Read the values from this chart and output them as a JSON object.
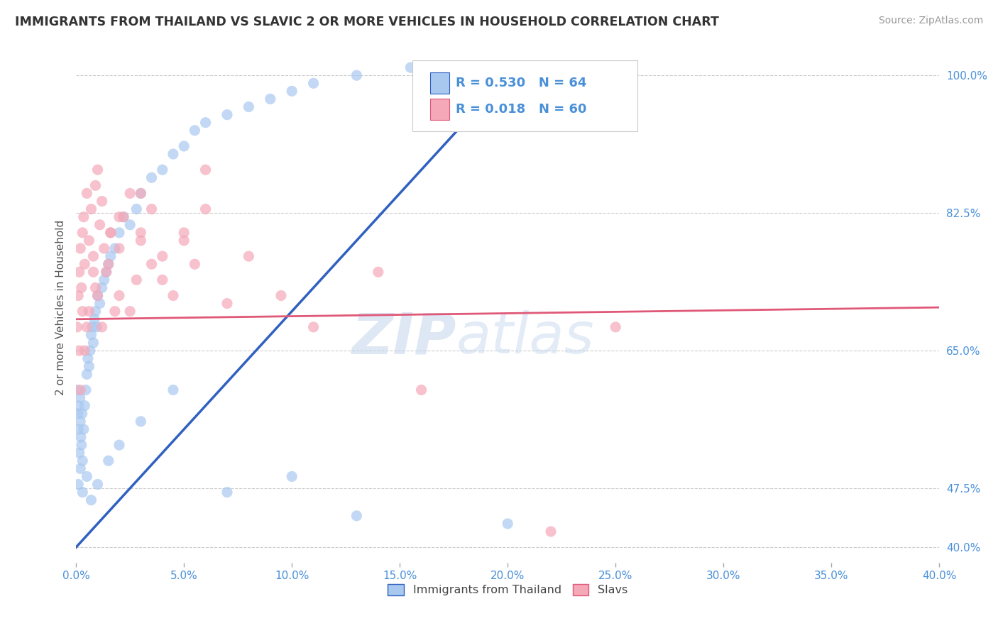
{
  "title": "IMMIGRANTS FROM THAILAND VS SLAVIC 2 OR MORE VEHICLES IN HOUSEHOLD CORRELATION CHART",
  "source": "Source: ZipAtlas.com",
  "xmin": 0.0,
  "xmax": 40.0,
  "ymin": 38.0,
  "ymax": 103.0,
  "ytick_vals": [
    40.0,
    47.5,
    65.0,
    82.5,
    100.0
  ],
  "xtick_vals": [
    0.0,
    5.0,
    10.0,
    15.0,
    20.0,
    25.0,
    30.0,
    35.0,
    40.0
  ],
  "R_thailand": 0.53,
  "N_thailand": 64,
  "R_slavs": 0.018,
  "N_slavs": 60,
  "color_thailand": "#a8c8f0",
  "color_slavs": "#f4a8b8",
  "line_color_thailand": "#3060c0",
  "line_color_slavs": "#e05878",
  "legend_text_color": "#4a90d9",
  "watermark_zip": "ZIP",
  "watermark_atlas": "atlas",
  "thailand_x": [
    0.05,
    0.08,
    0.1,
    0.12,
    0.15,
    0.18,
    0.2,
    0.22,
    0.25,
    0.28,
    0.3,
    0.35,
    0.4,
    0.45,
    0.5,
    0.55,
    0.6,
    0.65,
    0.7,
    0.75,
    0.8,
    0.85,
    0.9,
    0.95,
    1.0,
    1.1,
    1.2,
    1.3,
    1.4,
    1.5,
    1.6,
    1.8,
    2.0,
    2.2,
    2.5,
    2.8,
    3.0,
    3.5,
    4.0,
    4.5,
    5.0,
    5.5,
    6.0,
    7.0,
    8.0,
    9.0,
    10.0,
    11.0,
    13.0,
    15.5,
    0.1,
    0.2,
    0.3,
    0.5,
    0.7,
    1.0,
    1.5,
    2.0,
    3.0,
    4.5,
    7.0,
    10.0,
    13.0,
    20.0
  ],
  "thailand_y": [
    60,
    57,
    55,
    58,
    52,
    59,
    56,
    54,
    53,
    57,
    51,
    55,
    58,
    60,
    62,
    64,
    63,
    65,
    67,
    68,
    66,
    69,
    70,
    68,
    72,
    71,
    73,
    74,
    75,
    76,
    77,
    78,
    80,
    82,
    81,
    83,
    85,
    87,
    88,
    90,
    91,
    93,
    94,
    95,
    96,
    97,
    98,
    99,
    100,
    101,
    48,
    50,
    47,
    49,
    46,
    48,
    51,
    53,
    56,
    60,
    47,
    49,
    44,
    43
  ],
  "slavs_x": [
    0.05,
    0.1,
    0.15,
    0.2,
    0.25,
    0.3,
    0.35,
    0.4,
    0.5,
    0.6,
    0.7,
    0.8,
    0.9,
    1.0,
    1.1,
    1.2,
    1.4,
    1.6,
    1.8,
    2.0,
    2.2,
    2.5,
    2.8,
    3.0,
    3.5,
    4.0,
    4.5,
    5.0,
    5.5,
    6.0,
    0.15,
    0.3,
    0.5,
    0.8,
    1.0,
    1.3,
    1.6,
    2.0,
    2.5,
    3.0,
    3.5,
    4.0,
    5.0,
    6.0,
    7.0,
    8.0,
    9.5,
    11.0,
    14.0,
    16.0,
    0.2,
    0.4,
    0.6,
    0.9,
    1.2,
    1.5,
    2.0,
    3.0,
    22.0,
    25.0
  ],
  "slavs_y": [
    68,
    72,
    75,
    78,
    73,
    80,
    82,
    76,
    85,
    79,
    83,
    77,
    86,
    88,
    81,
    84,
    75,
    80,
    70,
    78,
    82,
    85,
    74,
    79,
    83,
    77,
    72,
    80,
    76,
    88,
    65,
    70,
    68,
    75,
    72,
    78,
    80,
    82,
    70,
    85,
    76,
    74,
    79,
    83,
    71,
    77,
    72,
    68,
    75,
    60,
    60,
    65,
    70,
    73,
    68,
    76,
    72,
    80,
    42,
    68
  ],
  "line_thailand_x0": 0.0,
  "line_thailand_y0": 40.0,
  "line_thailand_x1": 20.0,
  "line_thailand_y1": 100.0,
  "line_slavs_x0": 0.0,
  "line_slavs_y0": 69.0,
  "line_slavs_x1": 40.0,
  "line_slavs_y1": 70.5
}
